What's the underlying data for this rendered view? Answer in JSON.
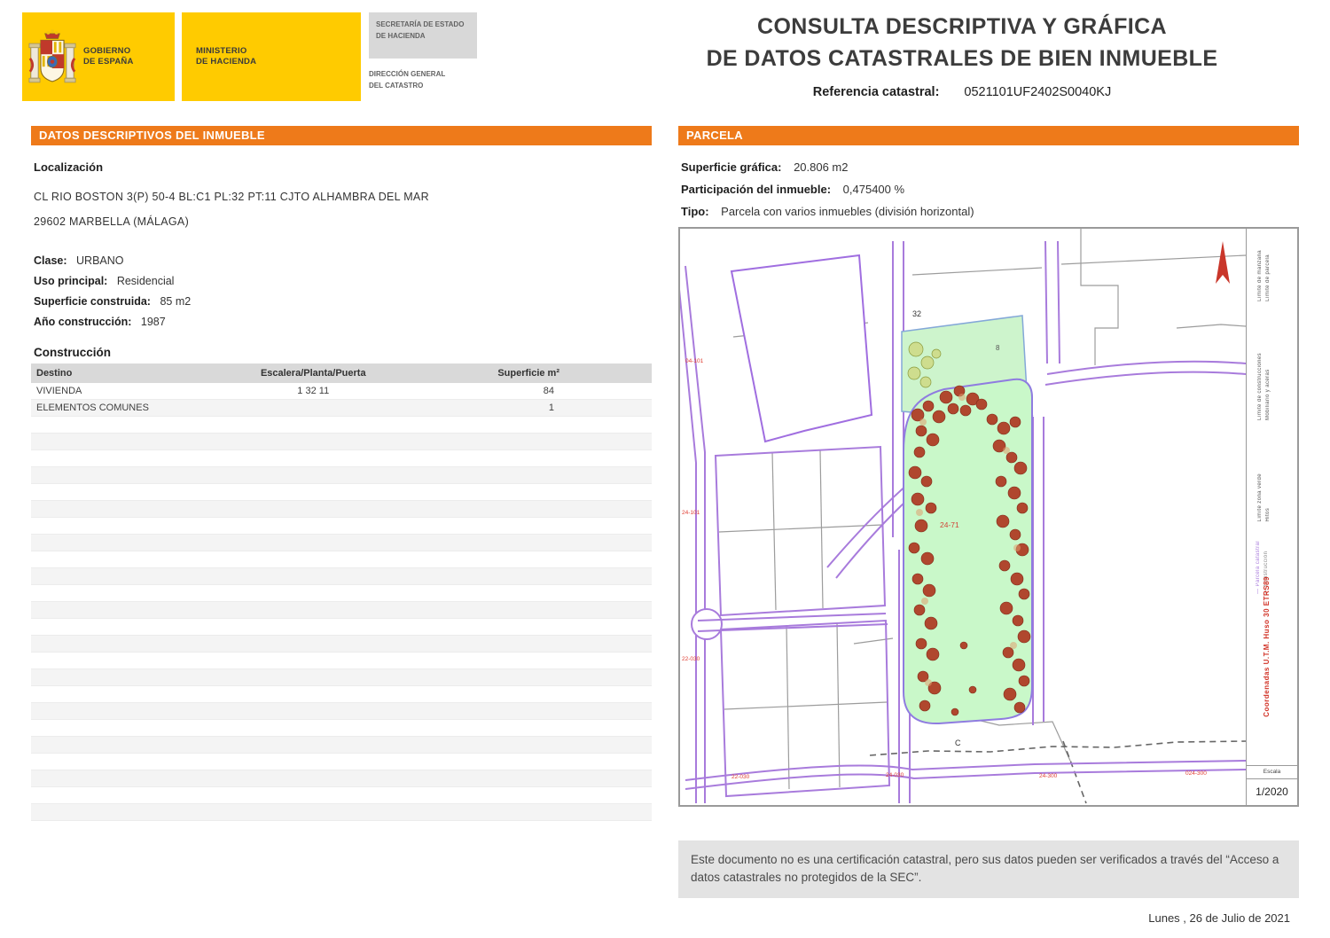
{
  "header": {
    "gobierno": "GOBIERNO\nDE ESPAÑA",
    "ministerio": "MINISTERIO\nDE HACIENDA",
    "secretaria": "SECRETARÍA DE ESTADO\nDE HACIENDA",
    "direccion": "DIRECCIÓN GENERAL\nDEL CATASTRO",
    "title_line1": "CONSULTA DESCRIPTIVA Y GRÁFICA",
    "title_line2": "DE DATOS CATASTRALES DE BIEN INMUEBLE",
    "referencia_label": "Referencia catastral:",
    "referencia_value": "0521101UF2402S0040KJ"
  },
  "inmueble": {
    "section_title": "DATOS DESCRIPTIVOS DEL INMUEBLE",
    "localizacion_label": "Localización",
    "address_line1": "CL RIO BOSTON 3(P) 50-4 BL:C1 PL:32 PT:11 CJTO ALHAMBRA DEL MAR",
    "address_line2": "29602 MARBELLA (MÁLAGA)",
    "clase_label": "Clase:",
    "clase_value": "URBANO",
    "uso_label": "Uso principal:",
    "uso_value": "Residencial",
    "superficie_label": "Superficie construida:",
    "superficie_value": "85 m2",
    "anio_label": "Año construcción:",
    "anio_value": "1987",
    "construccion_label": "Construcción",
    "table": {
      "headers": [
        "Destino",
        "Escalera/Planta/Puerta",
        "Superficie m²"
      ],
      "rows": [
        [
          "VIVIENDA",
          "1 32 11",
          "84"
        ],
        [
          "ELEMENTOS COMUNES",
          "",
          "1"
        ]
      ],
      "empty_rows": 24
    }
  },
  "parcela": {
    "section_title": "PARCELA",
    "superficie_grafica_label": "Superficie gráfica:",
    "superficie_grafica_value": "20.806 m2",
    "participacion_label": "Participación del inmueble:",
    "participacion_value": "0,475400 %",
    "tipo_label": "Tipo:",
    "tipo_value": "Parcela con varios inmuebles (división horizontal)"
  },
  "map": {
    "labels": {
      "block_32": "32",
      "marker_8": "8",
      "parcel_ref": "24-71",
      "label_c": "C",
      "street_left_1": "04-101",
      "street_left_2": "24-101",
      "street_left_3": "22-030",
      "street_bottom_1": "22-030",
      "street_bottom_2": "24-030",
      "street_bottom_3": "24-300",
      "street_bottom_4": "024-300"
    },
    "sidebar": {
      "legend_1": "Límite de manzana",
      "legend_2": "Límite de parcela",
      "legend_3": "Límite de construcciones",
      "legend_4": "Mobiliario y aceras",
      "legend_5": "Límite zona verde",
      "legend_6": "Hitos",
      "legend_parcela": "— Parcela catastral",
      "legend_construccion": "— Construcción",
      "coords_note": "Coordenadas U.T.M. Huso 30 ETRS89",
      "scale_label": "Escala",
      "scale_value": "1/2020"
    }
  },
  "footer": {
    "disclaimer": "Este documento no es una certificación catastral, pero sus datos pueden ser verificados a través del “Acceso a datos catastrales no protegidos de la SEC”.",
    "date": "Lunes , 26 de Julio de 2021"
  },
  "colors": {
    "accent_orange": "#EE7A1A",
    "brand_yellow": "#FFCB00",
    "parcel_green": "#C9F8C9",
    "cadastral_purple": "#A87BDC",
    "map_red": "#D93A2B"
  }
}
